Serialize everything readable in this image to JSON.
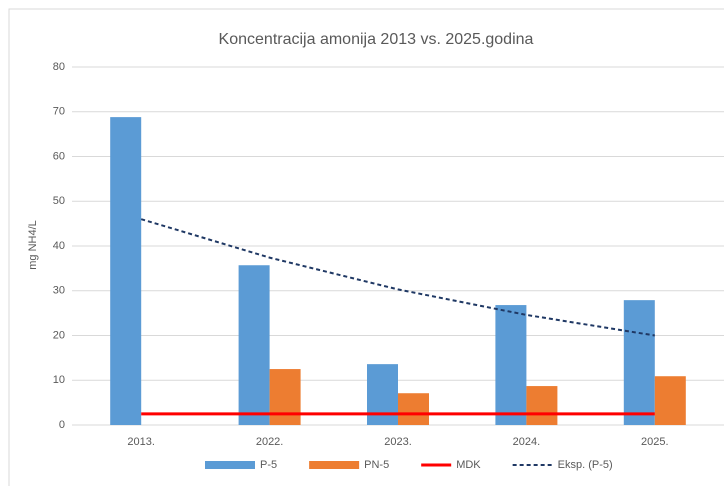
{
  "chart_data": {
    "type": "bar",
    "title": "Koncentracija amonija 2013 vs. 2025.godina",
    "y_label": "mg NH4/L",
    "categories": [
      "2013.",
      "2022.",
      "2023.",
      "2024.",
      "2025."
    ],
    "series": [
      {
        "name": "P-5",
        "type": "bar",
        "color": "#5b9bd5",
        "values": [
          68.8,
          35.7,
          13.6,
          26.8,
          27.9
        ]
      },
      {
        "name": "PN-5",
        "type": "bar",
        "color": "#ed7d31",
        "values": [
          null,
          12.5,
          7.1,
          8.7,
          10.9
        ]
      },
      {
        "name": "MDK",
        "type": "line",
        "color": "#ff0000",
        "values": [
          2.5,
          2.5,
          2.5,
          2.5,
          2.5
        ]
      },
      {
        "name": "Eksp. (P-5)",
        "type": "dashed-line",
        "color": "#1f3864",
        "values": [
          46,
          37.4,
          30.3,
          24.6,
          20
        ]
      }
    ],
    "ylim": [
      0,
      80
    ],
    "yticks": [
      0,
      10,
      20,
      30,
      40,
      50,
      60,
      70,
      80
    ],
    "grid": true,
    "legend": "bottom"
  }
}
